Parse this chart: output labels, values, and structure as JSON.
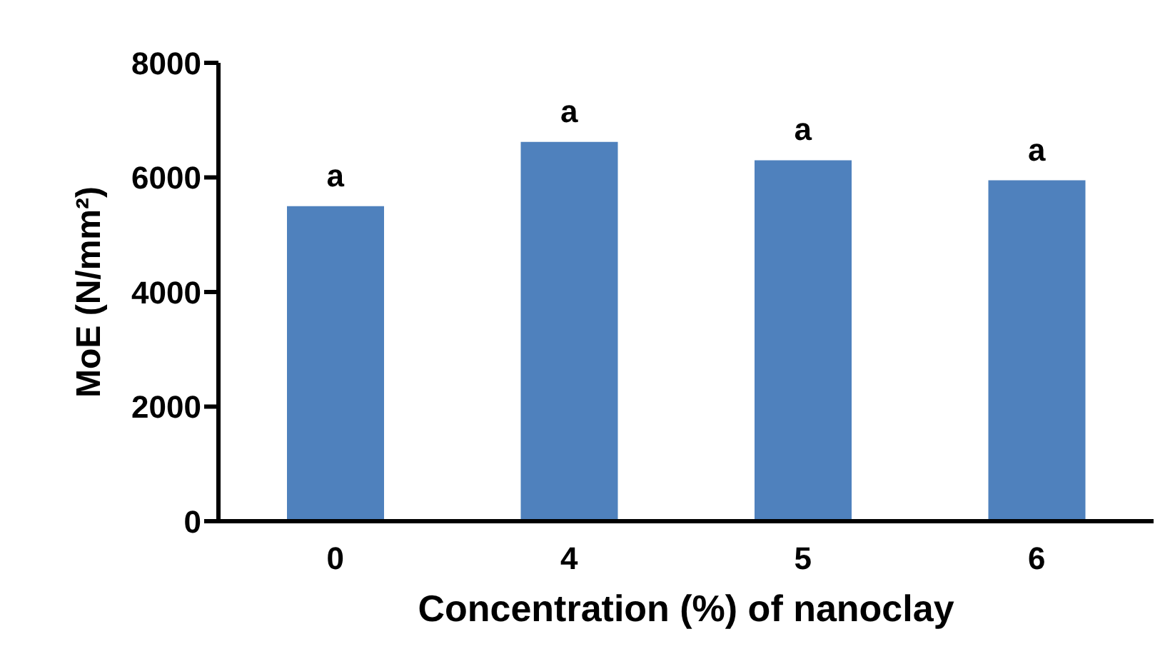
{
  "chart_data": {
    "type": "bar",
    "xlabel": "Concentration (%) of nanoclay",
    "ylabel": "MoE (N/mm²)",
    "categories": [
      "0",
      "4",
      "5",
      "6"
    ],
    "values": [
      5500,
      6620,
      6300,
      5950
    ],
    "color": "#4f81bd",
    "ylim": [
      0,
      8000
    ],
    "yticks": [
      0,
      2000,
      4000,
      6000,
      8000
    ],
    "grid": false,
    "legend": false,
    "annotations": [
      {
        "text": "a",
        "x": "0",
        "y": 5500
      },
      {
        "text": "a",
        "x": "4",
        "y": 6620
      },
      {
        "text": "a",
        "x": "5",
        "y": 6300
      },
      {
        "text": "a",
        "x": "6",
        "y": 5950
      }
    ]
  }
}
